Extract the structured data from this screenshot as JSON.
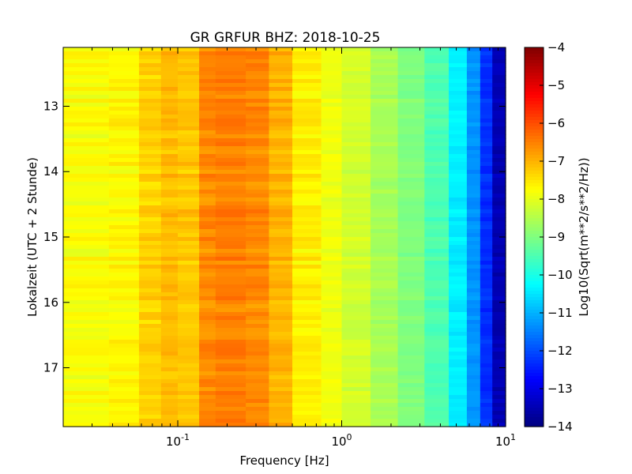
{
  "chart_data": {
    "type": "heatmap",
    "title": "GR GRFUR BHZ: 2018-10-25",
    "xlabel": "Frequency [Hz]",
    "ylabel": "Lokalzeit (UTC + 2 Stunde)",
    "x_scale": "log",
    "xlim": [
      0.02,
      10
    ],
    "ylim": [
      12.1,
      17.9
    ],
    "y_inverted": true,
    "x_ticks": [
      {
        "value": 0.1,
        "base": "10",
        "exp": "-1"
      },
      {
        "value": 1,
        "base": "10",
        "exp": "0"
      },
      {
        "value": 10,
        "base": "10",
        "exp": "1"
      }
    ],
    "y_ticks": [
      13,
      14,
      15,
      16,
      17
    ],
    "colorbar": {
      "label": "Log10(Sqrt(m**2/s**2/Hz))",
      "range": [
        -14,
        -4
      ],
      "ticks": [
        -4,
        -5,
        -6,
        -7,
        -8,
        -9,
        -10,
        -11,
        -12,
        -13,
        -14
      ],
      "colormap": "jet"
    },
    "bands": [
      {
        "f_from": 0.02,
        "f_to": 0.038,
        "value": -7.8
      },
      {
        "f_from": 0.038,
        "f_to": 0.058,
        "value": -7.7
      },
      {
        "f_from": 0.058,
        "f_to": 0.079,
        "value": -7.3
      },
      {
        "f_from": 0.079,
        "f_to": 0.1,
        "value": -7.1
      },
      {
        "f_from": 0.1,
        "f_to": 0.135,
        "value": -7.2
      },
      {
        "f_from": 0.135,
        "f_to": 0.17,
        "value": -6.6
      },
      {
        "f_from": 0.17,
        "f_to": 0.26,
        "value": -6.5
      },
      {
        "f_from": 0.26,
        "f_to": 0.36,
        "value": -6.6
      },
      {
        "f_from": 0.36,
        "f_to": 0.5,
        "value": -7.0
      },
      {
        "f_from": 0.5,
        "f_to": 0.75,
        "value": -7.6
      },
      {
        "f_from": 0.75,
        "f_to": 1.0,
        "value": -7.9
      },
      {
        "f_from": 1.0,
        "f_to": 1.5,
        "value": -8.2
      },
      {
        "f_from": 1.5,
        "f_to": 2.2,
        "value": -8.6
      },
      {
        "f_from": 2.2,
        "f_to": 3.2,
        "value": -9.0
      },
      {
        "f_from": 3.2,
        "f_to": 4.5,
        "value": -9.5
      },
      {
        "f_from": 4.5,
        "f_to": 5.8,
        "value": -10.4
      },
      {
        "f_from": 5.8,
        "f_to": 7.0,
        "value": -11.3
      },
      {
        "f_from": 7.0,
        "f_to": 8.3,
        "value": -12.3
      },
      {
        "f_from": 8.3,
        "f_to": 10,
        "value": -13.5
      }
    ]
  }
}
